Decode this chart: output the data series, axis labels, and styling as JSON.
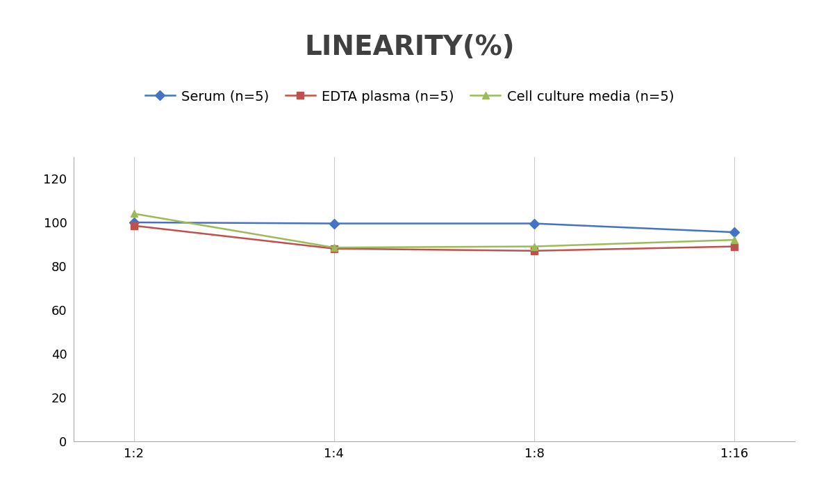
{
  "title": "LINEARITY(%)",
  "title_fontsize": 28,
  "title_fontweight": "bold",
  "title_color": "#404040",
  "x_labels": [
    "1:2",
    "1:4",
    "1:8",
    "1:16"
  ],
  "x_positions": [
    0,
    1,
    2,
    3
  ],
  "series": [
    {
      "label": "Serum (n=5)",
      "values": [
        100,
        99.5,
        99.5,
        95.5
      ],
      "color": "#4472C4",
      "marker": "D",
      "markersize": 7,
      "linewidth": 1.8
    },
    {
      "label": "EDTA plasma (n=5)",
      "values": [
        98.5,
        88,
        87,
        89
      ],
      "color": "#C0504D",
      "marker": "s",
      "markersize": 7,
      "linewidth": 1.8
    },
    {
      "label": "Cell culture media (n=5)",
      "values": [
        104,
        88.5,
        89,
        92
      ],
      "color": "#9BBB59",
      "marker": "^",
      "markersize": 7,
      "linewidth": 1.8
    }
  ],
  "ylim": [
    0,
    130
  ],
  "yticks": [
    0,
    20,
    40,
    60,
    80,
    100,
    120
  ],
  "background_color": "#ffffff",
  "grid_color": "#cccccc",
  "legend_fontsize": 14,
  "tick_fontsize": 13,
  "spine_color": "#aaaaaa"
}
